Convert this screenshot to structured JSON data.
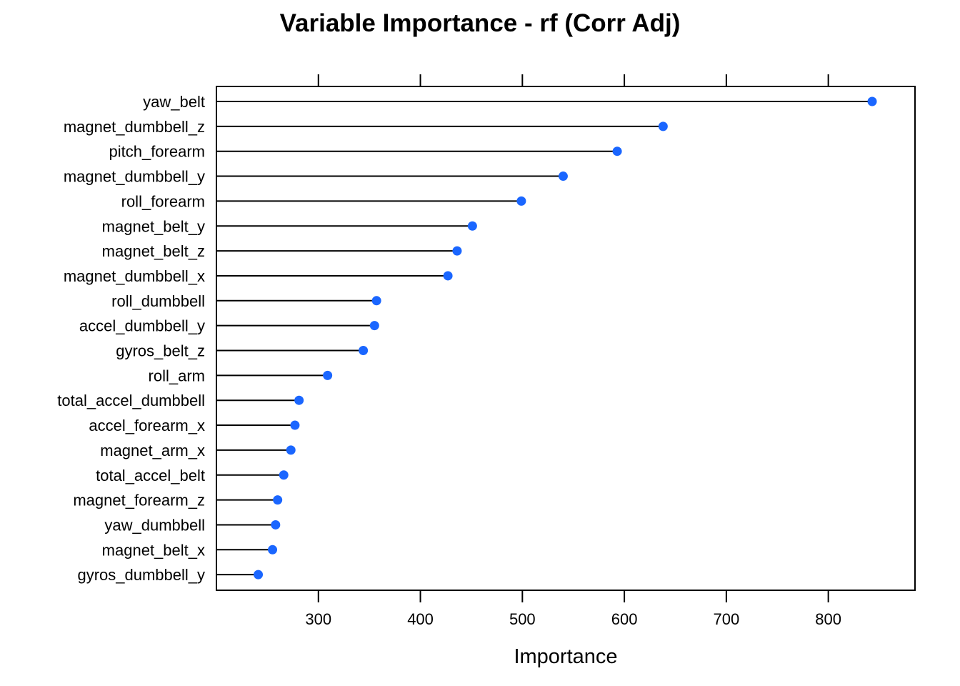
{
  "chart_data": {
    "type": "dot",
    "title": "Variable Importance - rf (Corr Adj)",
    "xlabel": "Importance",
    "ylabel": "",
    "xlim": [
      200,
      885
    ],
    "xticks": [
      300,
      400,
      500,
      600,
      700,
      800
    ],
    "point_color": "#1a66ff",
    "categories": [
      "yaw_belt",
      "magnet_dumbbell_z",
      "pitch_forearm",
      "magnet_dumbbell_y",
      "roll_forearm",
      "magnet_belt_y",
      "magnet_belt_z",
      "magnet_dumbbell_x",
      "roll_dumbbell",
      "accel_dumbbell_y",
      "gyros_belt_z",
      "roll_arm",
      "total_accel_dumbbell",
      "accel_forearm_x",
      "magnet_arm_x",
      "total_accel_belt",
      "magnet_forearm_z",
      "yaw_dumbbell",
      "magnet_belt_x",
      "gyros_dumbbell_y"
    ],
    "values": [
      843,
      638,
      593,
      540,
      499,
      451,
      436,
      427,
      357,
      355,
      344,
      309,
      281,
      277,
      273,
      266,
      260,
      258,
      255,
      241
    ]
  }
}
